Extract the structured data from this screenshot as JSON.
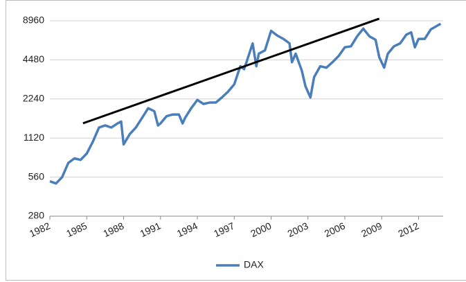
{
  "chart_data": {
    "type": "line",
    "log_scale_y": true,
    "grid": true,
    "legend": "bottom",
    "xlim": [
      1982,
      2014
    ],
    "xticks": [
      1982,
      1985,
      1988,
      1991,
      1994,
      1997,
      2000,
      2003,
      2006,
      2009,
      2012
    ],
    "ylim": [
      280,
      8960
    ],
    "yticks": [
      280,
      560,
      1120,
      2240,
      4480,
      8960
    ],
    "x": [
      1982.0,
      1982.5,
      1983.0,
      1983.5,
      1984.0,
      1984.5,
      1985.0,
      1985.5,
      1986.0,
      1986.5,
      1987.0,
      1987.5,
      1987.8,
      1988.0,
      1988.5,
      1989.0,
      1989.5,
      1990.0,
      1990.5,
      1990.8,
      1991.0,
      1991.5,
      1992.0,
      1992.5,
      1992.8,
      1993.0,
      1993.5,
      1994.0,
      1994.5,
      1995.0,
      1995.5,
      1996.0,
      1996.5,
      1997.0,
      1997.5,
      1997.8,
      1998.0,
      1998.5,
      1998.8,
      1999.0,
      1999.5,
      2000.0,
      2000.5,
      2001.0,
      2001.5,
      2001.7,
      2002.0,
      2002.5,
      2002.8,
      2003.2,
      2003.5,
      2004.0,
      2004.5,
      2005.0,
      2005.5,
      2006.0,
      2006.5,
      2007.0,
      2007.5,
      2008.0,
      2008.5,
      2008.8,
      2009.2,
      2009.5,
      2010.0,
      2010.5,
      2011.0,
      2011.4,
      2011.7,
      2012.0,
      2012.5,
      2013.0,
      2013.5,
      2013.8
    ],
    "series": [
      {
        "name": "DAX",
        "color": "#4a7ebb",
        "values": [
          520,
          500,
          560,
          720,
          780,
          760,
          850,
          1050,
          1350,
          1400,
          1350,
          1450,
          1500,
          1000,
          1200,
          1350,
          1600,
          1900,
          1800,
          1400,
          1450,
          1650,
          1700,
          1700,
          1450,
          1600,
          1900,
          2200,
          2050,
          2100,
          2100,
          2300,
          2550,
          2900,
          4000,
          3800,
          4300,
          6000,
          4000,
          5000,
          5300,
          7500,
          6900,
          6500,
          6000,
          4300,
          5000,
          3700,
          2800,
          2300,
          3300,
          4000,
          3900,
          4300,
          4800,
          5600,
          5700,
          6800,
          7800,
          6800,
          6400,
          4700,
          3900,
          5000,
          5700,
          6000,
          7000,
          7300,
          5600,
          6500,
          6500,
          7700,
          8200,
          8500
        ]
      }
    ],
    "trend_line": {
      "x": [
        1984.7,
        2008.8
      ],
      "values": [
        1455,
        9300
      ],
      "color": "#000000"
    }
  }
}
